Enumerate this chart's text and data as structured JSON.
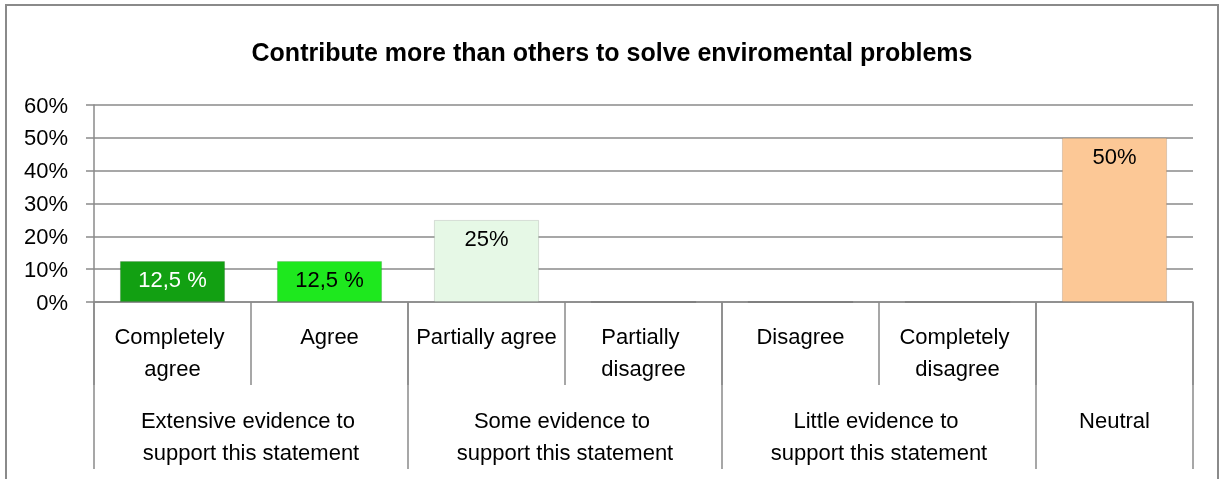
{
  "chart_data": {
    "type": "bar",
    "title": "Contribute more than others to solve enviromental problems",
    "categories": [
      "Completely agree",
      "Agree",
      "Partially agree",
      "Partially disagree",
      "Disagree",
      "Completely disagree",
      null
    ],
    "values": [
      12.5,
      12.5,
      25,
      0,
      0,
      0,
      50
    ],
    "colors": [
      "#12a012",
      "#1ee81e",
      "#e6f8e6",
      null,
      null,
      null,
      "#fcc896"
    ],
    "value_labels": [
      "12,5 %",
      "12,5 %",
      "25%",
      null,
      null,
      null,
      "50%"
    ],
    "ylim": [
      0,
      60
    ],
    "yticks": [
      {
        "value": 0,
        "label": "0%"
      },
      {
        "value": 10,
        "label": "10%"
      },
      {
        "value": 20,
        "label": "20%"
      },
      {
        "value": 30,
        "label": "30%"
      },
      {
        "value": 40,
        "label": "40%"
      },
      {
        "value": 50,
        "label": "50%"
      },
      {
        "value": 60,
        "label": "60%"
      }
    ],
    "grid": "y",
    "annotations": [
      "Extensive evidence to support this statement",
      "Some evidence to support this statement",
      "Little evidence to support this statement",
      "Neutral"
    ]
  }
}
